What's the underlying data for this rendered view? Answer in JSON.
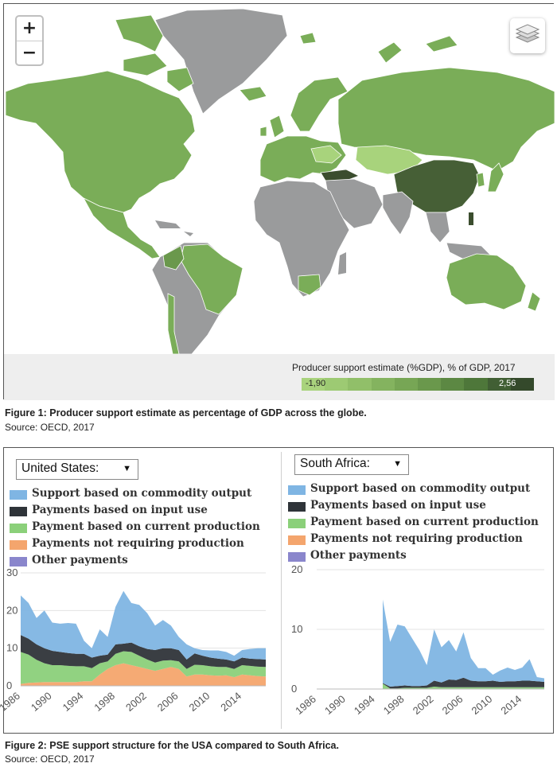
{
  "map": {
    "zoom_in": "+",
    "zoom_out": "−",
    "legend_title": "Producer support estimate (%GDP), % of GDP, 2017",
    "legend_min": "-1,90",
    "legend_max": "2,56",
    "legend_colors": [
      "#a9d37d",
      "#9dca73",
      "#91bf69",
      "#84b35f",
      "#77a655",
      "#6a984c",
      "#5c8843",
      "#4e773a",
      "#415f34",
      "#34492b"
    ],
    "land_gray": "#9a9b9c",
    "land_green": "#7aad58",
    "land_light": "#a8d37c",
    "land_dark": "#465f36"
  },
  "fig1": {
    "title": "Figure 1: Producer support estimate as percentage of GDP across the globe.",
    "source": "Source: OECD, 2017"
  },
  "fig2": {
    "title": "Figure 2: PSE support structure for the USA compared to South Africa.",
    "source": "Source: OECD, 2017"
  },
  "legend_items": [
    {
      "label": "Support based on commodity output",
      "color": "#7fb5e3"
    },
    {
      "label": "Payments based on input use",
      "color": "#2f3439"
    },
    {
      "label": "Payment based on current production",
      "color": "#8bd07a"
    },
    {
      "label": "Payments not requiring production",
      "color": "#f4a56d"
    },
    {
      "label": "Other payments",
      "color": "#8a86cc"
    }
  ],
  "chart_data": [
    {
      "type": "area",
      "title": "United States:",
      "x": [
        1986,
        1987,
        1988,
        1989,
        1990,
        1991,
        1992,
        1993,
        1994,
        1995,
        1996,
        1997,
        1998,
        1999,
        2000,
        2001,
        2002,
        2003,
        2004,
        2005,
        2006,
        2007,
        2008,
        2009,
        2010,
        2011,
        2012,
        2013,
        2014,
        2015,
        2016,
        2017
      ],
      "xticks": [
        "1986",
        "1990",
        "1994",
        "1998",
        "2002",
        "2006",
        "2010",
        "2014"
      ],
      "yticks": [
        "0",
        "10",
        "20",
        "30"
      ],
      "ylim": [
        0,
        30
      ],
      "stacked": true,
      "series": [
        {
          "name": "Payments not requiring production",
          "values": [
            0.5,
            0.8,
            0.9,
            1.0,
            1.0,
            1.0,
            1.0,
            1.0,
            1.2,
            1.2,
            3.0,
            4.5,
            5.5,
            6.0,
            5.5,
            5.0,
            4.5,
            4.0,
            4.5,
            5.0,
            4.5,
            2.5,
            3.0,
            3.0,
            2.8,
            2.7,
            2.8,
            2.3,
            3.0,
            2.8,
            2.6,
            2.5
          ]
        },
        {
          "name": "Payment based on current production",
          "values": [
            8.5,
            7.5,
            6.0,
            5.0,
            4.5,
            4.5,
            4.3,
            4.2,
            4.0,
            3.5,
            3.0,
            2.0,
            3.0,
            3.2,
            3.5,
            3.0,
            2.5,
            2.2,
            2.2,
            1.8,
            2.0,
            2.0,
            2.6,
            2.5,
            2.4,
            2.3,
            2.2,
            2.2,
            2.5,
            2.5,
            2.5,
            2.5
          ]
        },
        {
          "name": "Payments based on input use",
          "values": [
            4.5,
            4.2,
            4.1,
            4.0,
            3.8,
            3.5,
            3.4,
            3.3,
            3.3,
            2.8,
            2.0,
            1.8,
            2.5,
            2.0,
            2.5,
            2.5,
            2.8,
            3.3,
            3.3,
            3.2,
            3.0,
            2.5,
            3.0,
            2.5,
            2.3,
            2.2,
            2.0,
            2.0,
            2.0,
            1.9,
            2.0,
            2.0
          ]
        },
        {
          "name": "Support based on commodity output",
          "values": [
            10.5,
            9.5,
            7.0,
            10.0,
            7.5,
            7.5,
            8.0,
            8.0,
            3.5,
            2.5,
            7.0,
            4.7,
            10.0,
            14.0,
            10.5,
            11.0,
            9.5,
            6.5,
            7.5,
            6.0,
            3.5,
            4.0,
            1.4,
            1.5,
            1.9,
            2.2,
            2.0,
            1.5,
            2.0,
            2.6,
            2.9,
            3.0
          ]
        },
        {
          "name": "Other payments",
          "values": [
            0,
            0,
            0,
            0,
            0,
            0,
            0,
            0,
            0,
            0,
            0,
            0,
            0,
            0,
            0,
            0,
            0,
            0,
            0,
            0,
            0,
            0,
            0,
            0,
            0,
            0,
            0,
            0,
            0,
            0,
            0,
            0
          ]
        }
      ]
    },
    {
      "type": "area",
      "title": "South Africa:",
      "x": [
        1986,
        1987,
        1988,
        1989,
        1990,
        1991,
        1992,
        1993,
        1994,
        1995,
        1996,
        1997,
        1998,
        1999,
        2000,
        2001,
        2002,
        2003,
        2004,
        2005,
        2006,
        2007,
        2008,
        2009,
        2010,
        2011,
        2012,
        2013,
        2014,
        2015,
        2016,
        2017
      ],
      "xticks": [
        "1986",
        "1990",
        "1994",
        "1998",
        "2002",
        "2006",
        "2010",
        "2014"
      ],
      "yticks": [
        "0",
        "10",
        "20"
      ],
      "ylim": [
        0,
        20
      ],
      "stacked": true,
      "series": [
        {
          "name": "Payments not requiring production",
          "values": [
            0,
            0,
            0,
            0,
            0,
            0,
            0,
            0,
            0,
            0,
            0,
            0,
            0,
            0,
            0,
            0,
            0,
            0,
            0,
            0,
            0,
            0,
            0,
            0,
            0,
            0,
            0,
            0,
            0,
            0,
            0,
            0
          ]
        },
        {
          "name": "Payment based on current production",
          "values": [
            0,
            0,
            0,
            0,
            0,
            0,
            0,
            0,
            0,
            0.9,
            0.1,
            0.1,
            0.2,
            0.2,
            0.2,
            0.2,
            0.4,
            0.3,
            0.3,
            0.3,
            0.3,
            0.3,
            0.3,
            0.3,
            0.3,
            0.3,
            0.3,
            0.3,
            0.3,
            0.3,
            0.3,
            0.3
          ]
        },
        {
          "name": "Payments based on input use",
          "values": [
            0,
            0,
            0,
            0,
            0,
            0,
            0,
            0,
            0,
            0.1,
            0.3,
            0.4,
            0.4,
            0.3,
            0.3,
            0.4,
            1.0,
            0.8,
            1.3,
            1.2,
            1.6,
            1.1,
            1.0,
            1.0,
            1.1,
            0.9,
            1.0,
            1.0,
            1.1,
            1.1,
            1.0,
            0.9
          ]
        },
        {
          "name": "Support based on commodity output",
          "values": [
            0,
            0,
            0,
            0,
            0,
            0,
            0,
            0,
            0,
            14.0,
            7.5,
            10.3,
            9.9,
            8.0,
            6.0,
            3.4,
            8.6,
            5.9,
            6.6,
            4.8,
            7.6,
            3.8,
            2.2,
            2.2,
            1.0,
            1.9,
            2.3,
            1.9,
            2.2,
            3.6,
            0.7,
            0.6
          ]
        },
        {
          "name": "Other payments",
          "values": [
            0,
            0,
            0,
            0,
            0,
            0,
            0,
            0,
            0,
            0,
            0,
            0,
            0,
            0,
            0,
            0,
            0,
            0,
            0,
            0,
            0,
            0,
            0,
            0,
            0,
            0,
            0,
            0,
            0,
            0,
            0,
            0
          ]
        }
      ]
    }
  ]
}
